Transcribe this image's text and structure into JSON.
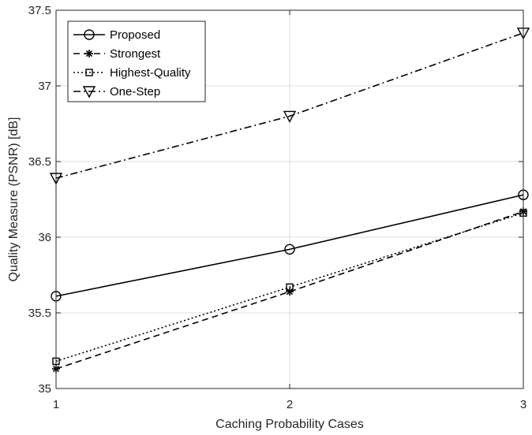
{
  "chart_data": {
    "type": "line",
    "title": "",
    "xlabel": "Caching Probability Cases",
    "ylabel": "Quality Measure (PSNR) [dB]",
    "x": [
      1,
      2,
      3
    ],
    "xlim": [
      1,
      3
    ],
    "ylim": [
      35,
      37.5
    ],
    "xticks": [
      "1",
      "2",
      "3"
    ],
    "yticks": [
      "35",
      "35.5",
      "36",
      "36.5",
      "37",
      "37.5"
    ],
    "grid": true,
    "legend_position": "top-left",
    "series": [
      {
        "name": "Proposed",
        "values": [
          35.61,
          35.92,
          36.28
        ],
        "marker": "circle",
        "dash": "solid"
      },
      {
        "name": "Strongest",
        "values": [
          35.13,
          35.64,
          36.17
        ],
        "marker": "asterisk",
        "dash": "dashed"
      },
      {
        "name": "Highest-Quality",
        "values": [
          35.18,
          35.67,
          36.16
        ],
        "marker": "square",
        "dash": "dotted"
      },
      {
        "name": "One-Step",
        "values": [
          36.39,
          36.8,
          37.35
        ],
        "marker": "triangle-down",
        "dash": "dashdot"
      }
    ],
    "colors": {
      "line": "#000000",
      "grid": "#dfdfdf",
      "axis": "#262626"
    }
  }
}
